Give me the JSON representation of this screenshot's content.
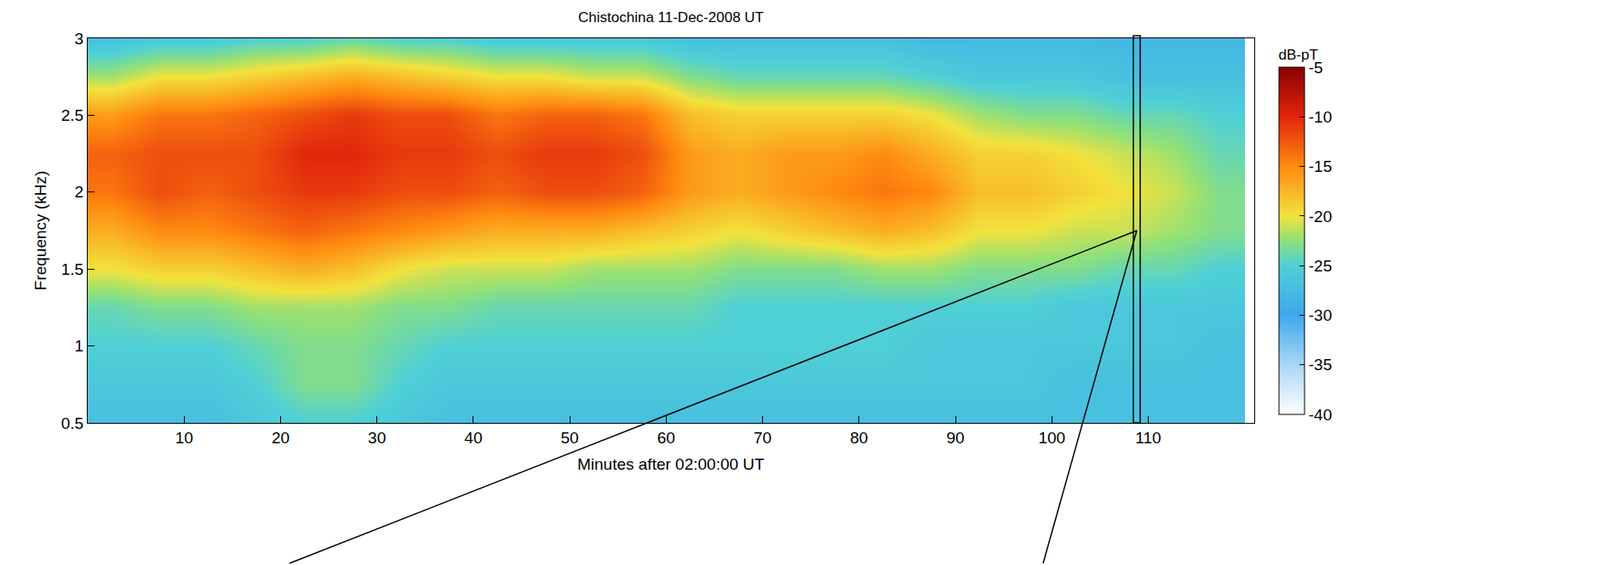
{
  "chart_data": {
    "type": "heatmap",
    "title": "Chistochina 11-Dec-2008 UT",
    "x_label": "Minutes after 02:00:00 UT",
    "y_label": "Frequency (kHz)",
    "x": [
      2.5,
      7.5,
      12.5,
      17.5,
      22.5,
      27.5,
      32.5,
      37.5,
      42.5,
      47.5,
      52.5,
      57.5,
      62.5,
      67.5,
      72.5,
      77.5,
      82.5,
      87.5,
      92.5,
      97.5,
      102.5,
      107.5,
      112.5,
      117.5
    ],
    "y": [
      0.5,
      0.75,
      1.0,
      1.25,
      1.5,
      1.75,
      2.0,
      2.25,
      2.5,
      2.75,
      3.0
    ],
    "values": [
      [
        -27,
        -26,
        -25,
        -24,
        -20,
        -17,
        -14,
        -13,
        -16,
        -22,
        -27
      ],
      [
        -27,
        -26,
        -25,
        -23,
        -19,
        -15,
        -12,
        -12,
        -14,
        -20,
        -26
      ],
      [
        -27,
        -26,
        -25,
        -23,
        -19,
        -15,
        -13,
        -12,
        -14,
        -20,
        -26
      ],
      [
        -26,
        -25,
        -24,
        -22,
        -18,
        -14,
        -12,
        -12,
        -13,
        -19,
        -25
      ],
      [
        -25,
        -23,
        -23,
        -22,
        -17,
        -13,
        -11,
        -10,
        -12,
        -18,
        -25
      ],
      [
        -25,
        -23,
        -23,
        -22,
        -18,
        -14,
        -11,
        -10,
        -11,
        -17,
        -24
      ],
      [
        -26,
        -25,
        -24,
        -23,
        -20,
        -15,
        -12,
        -11,
        -12,
        -18,
        -25
      ],
      [
        -27,
        -26,
        -25,
        -23,
        -21,
        -16,
        -12,
        -11,
        -12,
        -19,
        -25
      ],
      [
        -27,
        -26,
        -25,
        -24,
        -21,
        -17,
        -13,
        -12,
        -14,
        -20,
        -26
      ],
      [
        -27,
        -26,
        -25,
        -24,
        -21,
        -17,
        -12,
        -11,
        -13,
        -20,
        -26
      ],
      [
        -27,
        -26,
        -25,
        -24,
        -22,
        -17,
        -12,
        -11,
        -13,
        -21,
        -26
      ],
      [
        -27,
        -26,
        -25,
        -24,
        -22,
        -18,
        -13,
        -12,
        -14,
        -21,
        -26
      ],
      [
        -27,
        -26,
        -25,
        -24,
        -22,
        -19,
        -16,
        -16,
        -18,
        -23,
        -27
      ],
      [
        -27,
        -26,
        -25,
        -25,
        -23,
        -20,
        -17,
        -17,
        -19,
        -24,
        -27
      ],
      [
        -27,
        -26,
        -25,
        -25,
        -23,
        -19,
        -16,
        -16,
        -19,
        -24,
        -27
      ],
      [
        -27,
        -26,
        -25,
        -25,
        -23,
        -18,
        -15,
        -16,
        -19,
        -24,
        -27
      ],
      [
        -27,
        -26,
        -25,
        -25,
        -22,
        -17,
        -14,
        -15,
        -19,
        -24,
        -27
      ],
      [
        -27,
        -26,
        -26,
        -25,
        -22,
        -18,
        -15,
        -17,
        -20,
        -25,
        -28
      ],
      [
        -27,
        -26,
        -26,
        -25,
        -23,
        -20,
        -18,
        -19,
        -22,
        -26,
        -28
      ],
      [
        -27,
        -26,
        -26,
        -25,
        -23,
        -20,
        -18,
        -19,
        -23,
        -26,
        -28
      ],
      [
        -27,
        -27,
        -26,
        -26,
        -23,
        -21,
        -19,
        -20,
        -23,
        -26,
        -28
      ],
      [
        -27,
        -27,
        -26,
        -26,
        -24,
        -21,
        -20,
        -21,
        -24,
        -27,
        -28
      ],
      [
        -27,
        -27,
        -26,
        -26,
        -24,
        -22,
        -21,
        -22,
        -24,
        -27,
        -28
      ],
      [
        -27,
        -27,
        -27,
        -26,
        -25,
        -23,
        -23,
        -24,
        -25,
        -27,
        -28
      ]
    ],
    "xlim": [
      0,
      121
    ],
    "xticks": [
      10,
      20,
      30,
      40,
      50,
      60,
      70,
      80,
      90,
      100,
      110
    ],
    "ylim": [
      0.5,
      3
    ],
    "yticks": [
      0.5,
      1,
      1.5,
      2,
      2.5,
      3
    ],
    "colorbar": {
      "title": "dB-pT",
      "range": [
        -40,
        -5
      ],
      "ticks": [
        -40,
        -35,
        -30,
        -25,
        -20,
        -15,
        -10,
        -5
      ]
    },
    "grid": false
  }
}
